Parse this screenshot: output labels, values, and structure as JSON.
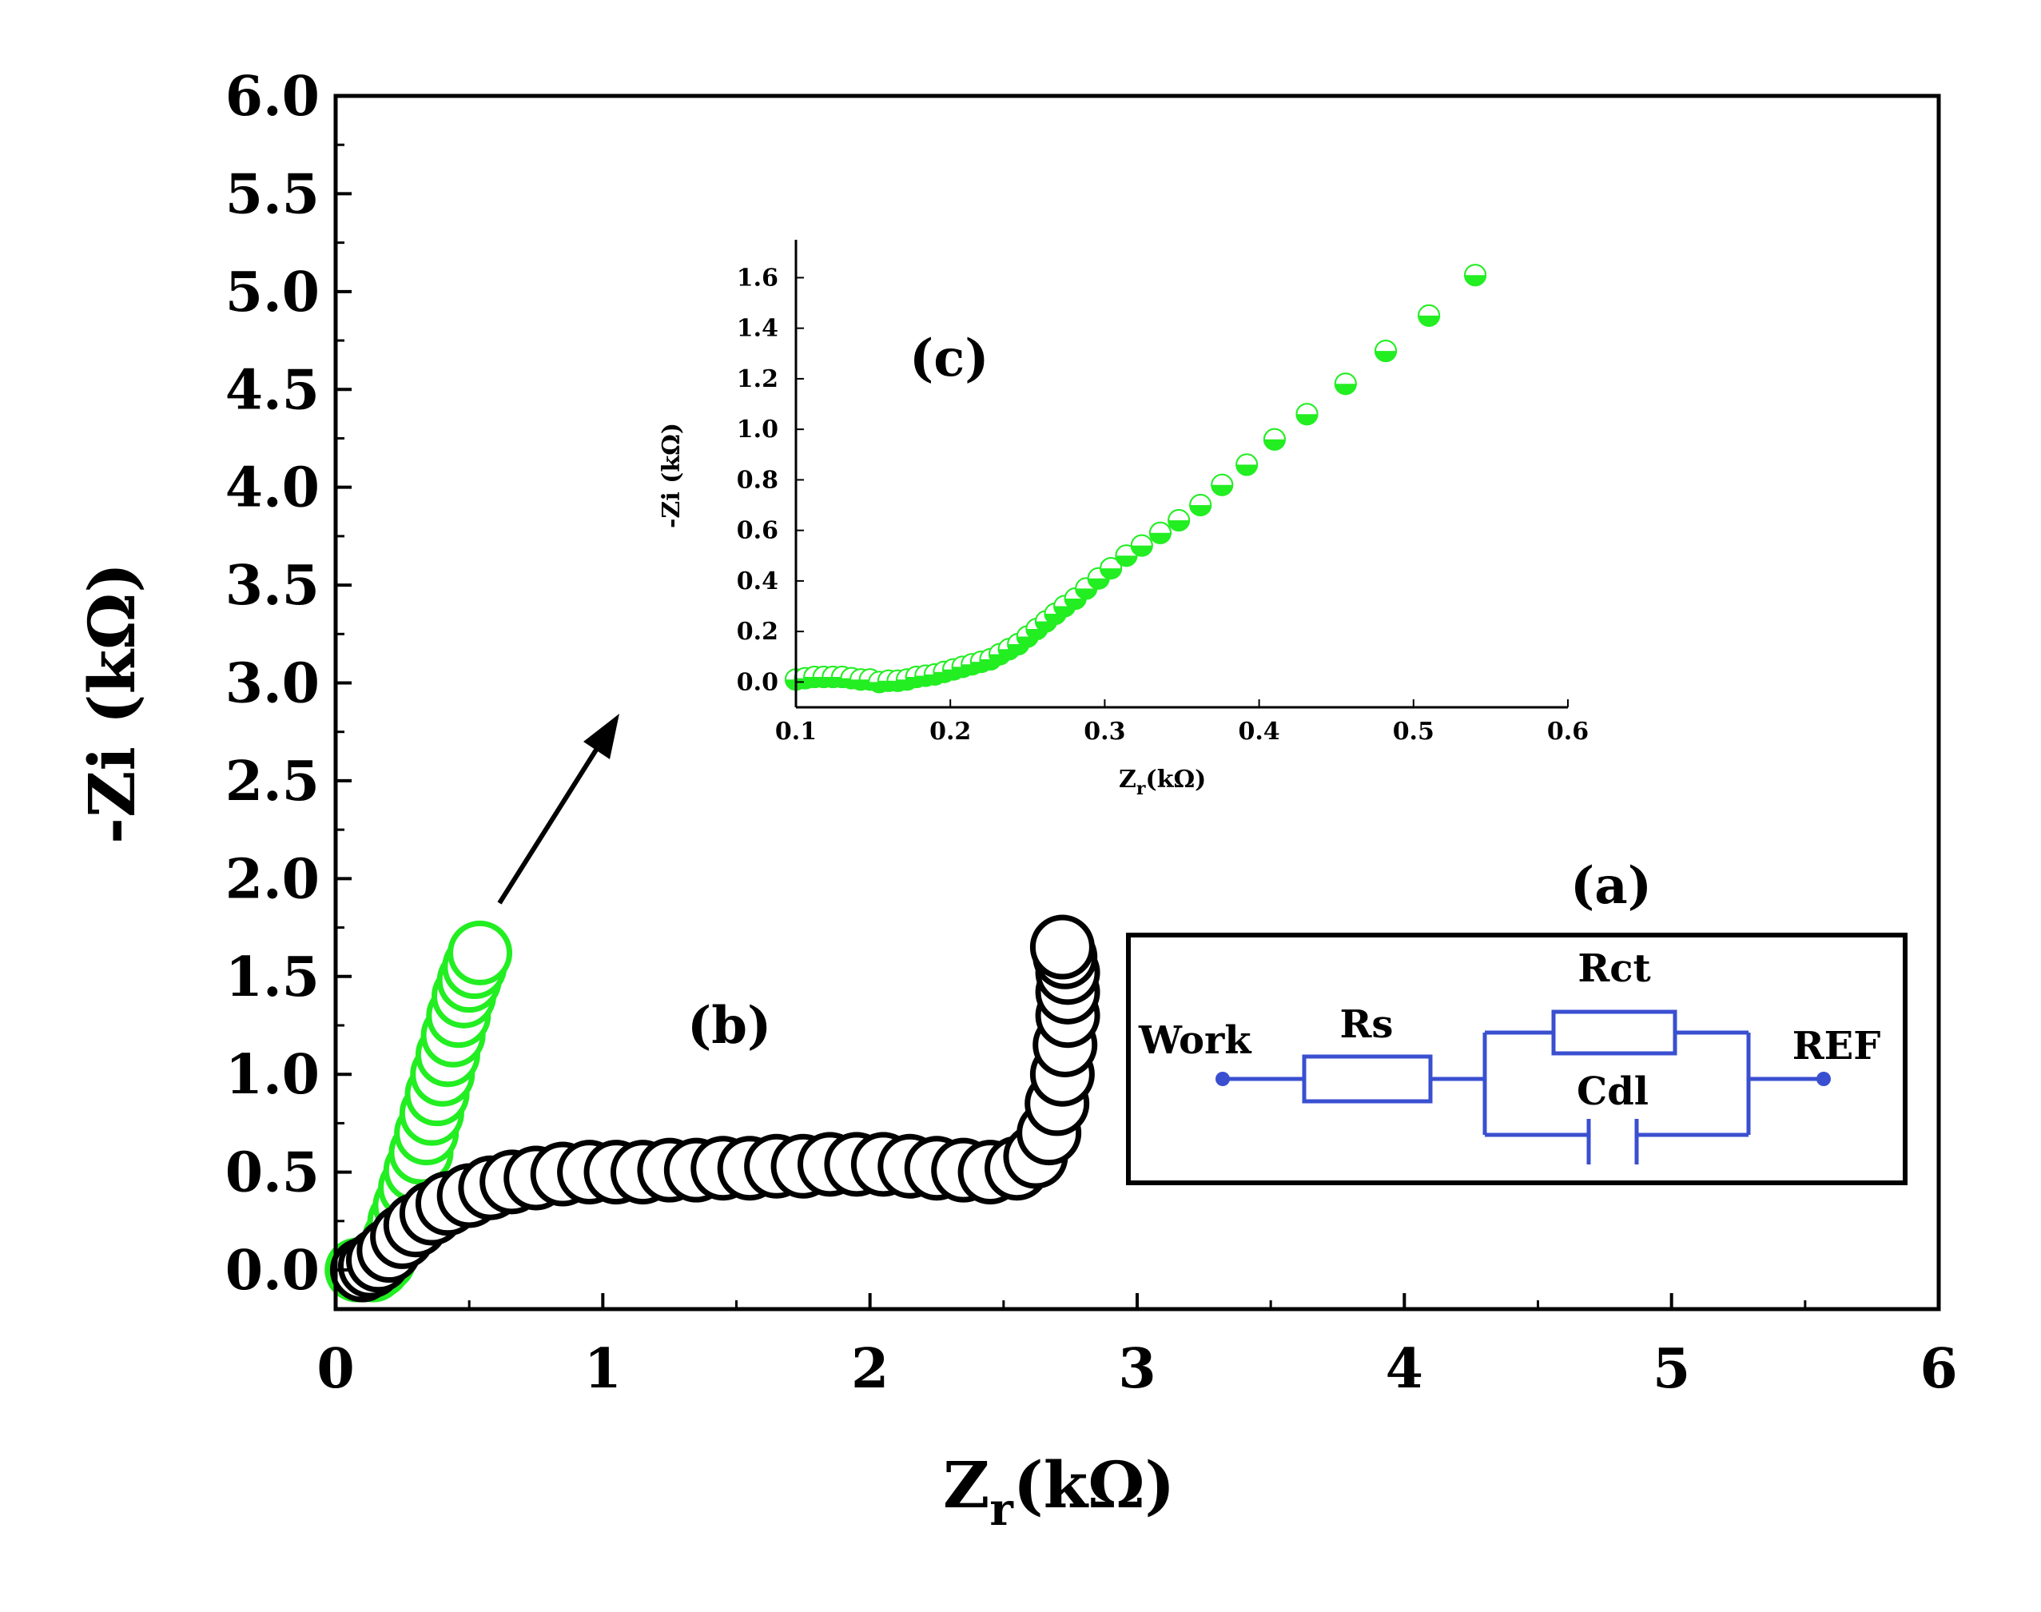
{
  "chart_data": [
    {
      "id": "main",
      "type": "scatter",
      "title": "",
      "xlabel": "Z",
      "xlabel_sub": "r",
      "xlabel_unit": "(kΩ)",
      "ylabel": "-Zi (kΩ)",
      "xlim": [
        0,
        6
      ],
      "ylim": [
        -0.2,
        6.0
      ],
      "xticks": [
        "0",
        "1",
        "2",
        "3",
        "4",
        "5",
        "6"
      ],
      "yticks": [
        "0.0",
        "0.5",
        "1.0",
        "1.5",
        "2.0",
        "2.5",
        "3.0",
        "3.5",
        "4.0",
        "4.5",
        "5.0",
        "5.5",
        "6.0"
      ],
      "series": [
        {
          "name": "green",
          "color": "#22ee22",
          "marker": "open-circle",
          "x": [
            0.08,
            0.1,
            0.12,
            0.14,
            0.16,
            0.18,
            0.2,
            0.22,
            0.24,
            0.26,
            0.28,
            0.3,
            0.32,
            0.34,
            0.36,
            0.38,
            0.4,
            0.42,
            0.44,
            0.46,
            0.48,
            0.5,
            0.52,
            0.54
          ],
          "y": [
            0.0,
            0.0,
            0.01,
            0.0,
            0.02,
            0.05,
            0.1,
            0.16,
            0.25,
            0.33,
            0.42,
            0.51,
            0.6,
            0.7,
            0.8,
            0.9,
            1.0,
            1.1,
            1.2,
            1.3,
            1.4,
            1.48,
            1.55,
            1.62
          ]
        },
        {
          "name": "black",
          "color": "#000000",
          "marker": "open-circle",
          "x": [
            0.1,
            0.13,
            0.16,
            0.2,
            0.25,
            0.3,
            0.36,
            0.42,
            0.5,
            0.58,
            0.66,
            0.75,
            0.85,
            0.95,
            1.05,
            1.15,
            1.25,
            1.35,
            1.45,
            1.55,
            1.65,
            1.75,
            1.85,
            1.95,
            2.05,
            2.15,
            2.25,
            2.35,
            2.45,
            2.55,
            2.62,
            2.67,
            2.7,
            2.72,
            2.73,
            2.74,
            2.74,
            2.74,
            2.73,
            2.72
          ],
          "y": [
            0.0,
            0.02,
            0.05,
            0.1,
            0.17,
            0.23,
            0.29,
            0.34,
            0.38,
            0.42,
            0.45,
            0.47,
            0.49,
            0.5,
            0.5,
            0.5,
            0.51,
            0.51,
            0.52,
            0.52,
            0.53,
            0.53,
            0.54,
            0.54,
            0.54,
            0.53,
            0.52,
            0.51,
            0.5,
            0.52,
            0.58,
            0.7,
            0.85,
            1.0,
            1.15,
            1.3,
            1.42,
            1.52,
            1.6,
            1.65
          ]
        }
      ]
    },
    {
      "id": "inset",
      "type": "scatter",
      "title": "",
      "xlabel": "Z",
      "xlabel_sub": "r",
      "xlabel_unit": "(kΩ)",
      "ylabel": "-Zi (kΩ)",
      "xlim": [
        0.1,
        0.6
      ],
      "ylim": [
        -0.1,
        1.75
      ],
      "xticks": [
        "0.1",
        "0.2",
        "0.3",
        "0.4",
        "0.5",
        "0.6"
      ],
      "yticks": [
        "0.0",
        "0.2",
        "0.4",
        "0.6",
        "0.8",
        "1.0",
        "1.2",
        "1.4",
        "1.6"
      ],
      "series": [
        {
          "name": "green",
          "color": "#22ee22",
          "marker": "half-filled-circle",
          "x": [
            0.1,
            0.106,
            0.112,
            0.118,
            0.124,
            0.13,
            0.136,
            0.142,
            0.148,
            0.154,
            0.16,
            0.166,
            0.172,
            0.178,
            0.184,
            0.19,
            0.196,
            0.202,
            0.208,
            0.214,
            0.22,
            0.226,
            0.232,
            0.238,
            0.244,
            0.25,
            0.256,
            0.262,
            0.268,
            0.274,
            0.281,
            0.288,
            0.296,
            0.304,
            0.314,
            0.324,
            0.336,
            0.348,
            0.362,
            0.376,
            0.392,
            0.41,
            0.431,
            0.456,
            0.482,
            0.51,
            0.54
          ],
          "y": [
            0.01,
            0.015,
            0.02,
            0.02,
            0.02,
            0.02,
            0.015,
            0.01,
            0.01,
            0.0,
            0.005,
            0.005,
            0.01,
            0.02,
            0.025,
            0.03,
            0.04,
            0.05,
            0.06,
            0.07,
            0.08,
            0.09,
            0.11,
            0.13,
            0.15,
            0.18,
            0.21,
            0.24,
            0.27,
            0.3,
            0.33,
            0.37,
            0.41,
            0.45,
            0.5,
            0.54,
            0.59,
            0.64,
            0.7,
            0.78,
            0.86,
            0.96,
            1.06,
            1.18,
            1.31,
            1.45,
            1.61
          ]
        }
      ]
    }
  ],
  "labels": {
    "panel_a": "(a)",
    "panel_b": "(b)",
    "panel_c": "(c)"
  },
  "circuit": {
    "work": "Work",
    "rs": "Rs",
    "rct": "Rct",
    "cdl": "Cdl",
    "ref": "REF",
    "wire_color": "#3a4fd0"
  }
}
